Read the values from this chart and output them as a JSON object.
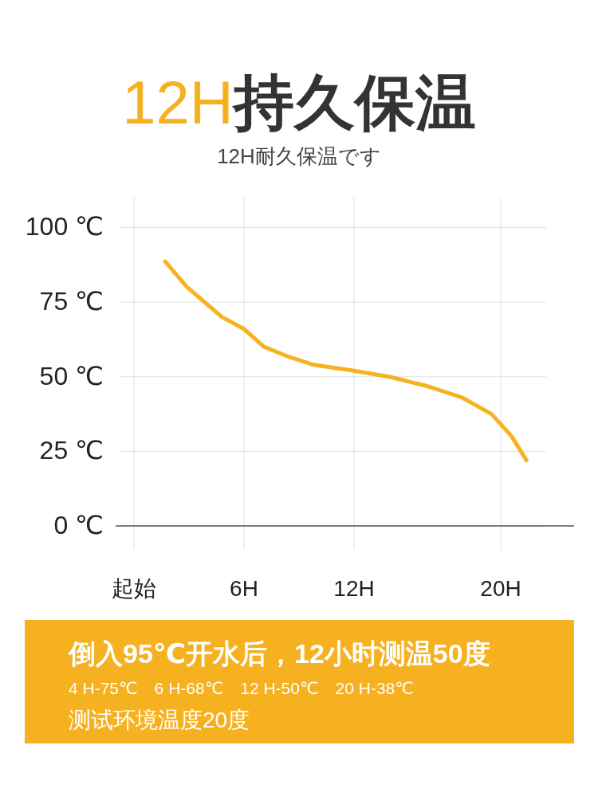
{
  "chart_data": {
    "type": "line",
    "title": "12H持久保温",
    "subtitle": "12H耐久保温です",
    "x": [
      1.7,
      2.9,
      4.8,
      6,
      7.1,
      8.3,
      9.8,
      12,
      13.9,
      15.9,
      17.9,
      19.5,
      20.6,
      21.4
    ],
    "series": [
      {
        "color": "#f5b320",
        "values": [
          88.6,
          80,
          70,
          66,
          60,
          57,
          54,
          52,
          50,
          47,
          43,
          37.5,
          30,
          22
        ]
      }
    ],
    "xlim": [
      -1,
      24
    ],
    "xticks": [
      {
        "value": 0,
        "label": "起始"
      },
      {
        "value": 6,
        "label": "6H"
      },
      {
        "value": 12,
        "label": "12H"
      },
      {
        "value": 20,
        "label": "20H"
      }
    ],
    "ylim": [
      -8,
      110
    ],
    "yticks": [
      {
        "value": 0,
        "label": "0 ℃"
      },
      {
        "value": 25,
        "label": "25 ℃"
      },
      {
        "value": 50,
        "label": "50 ℃"
      },
      {
        "value": 75,
        "label": "75 ℃"
      },
      {
        "value": 100,
        "label": "100 ℃"
      }
    ],
    "grid": true,
    "marker": "none",
    "annotations": [
      "倒入95℃开水后，12小时测温50度",
      "4 H-75℃　6 H-68℃　12 H-50℃　20 H-38℃",
      "测试环境温度20度"
    ]
  }
}
